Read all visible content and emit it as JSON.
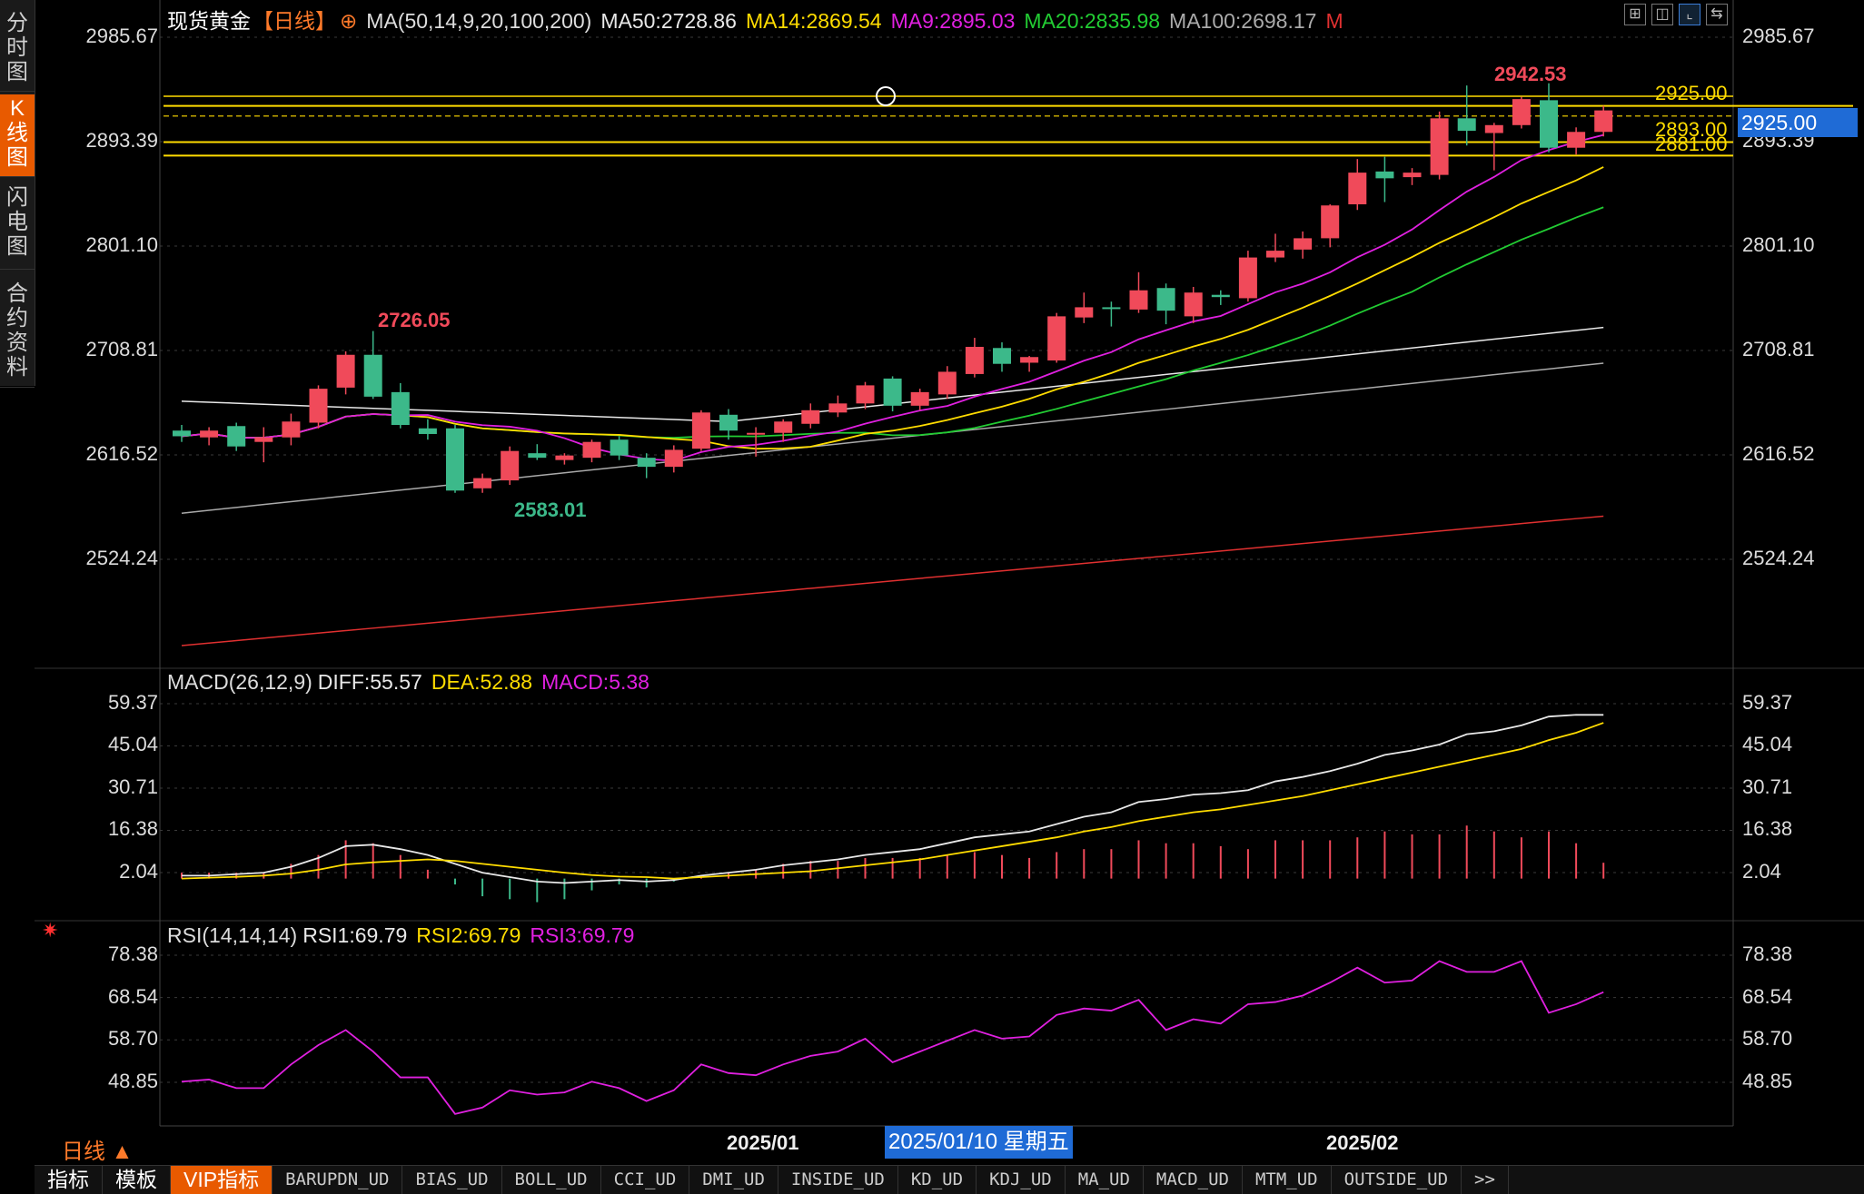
{
  "sidebar": {
    "tabs": [
      {
        "label": "分时图",
        "active": false
      },
      {
        "label": "K线图",
        "active": true
      },
      {
        "label": "闪电图",
        "active": false
      },
      {
        "label": "合约资料",
        "active": false
      }
    ]
  },
  "header": {
    "symbol": "现货黄金",
    "period_tag": "【日线】",
    "ma_params": "MA(50,14,9,20,100,200)",
    "ma50": "MA50:2728.86",
    "ma14": "MA14:2869.54",
    "ma9": "MA9:2895.03",
    "ma20": "MA20:2835.98",
    "ma100": "MA100:2698.17",
    "m_tag": "M",
    "toolbar_icons": [
      "grid-icon",
      "split-icon",
      "chart-icon",
      "arrows-icon"
    ]
  },
  "price_axis": {
    "ticks": [
      "2985.67",
      "2893.39",
      "2801.10",
      "2708.81",
      "2616.52",
      "2524.24"
    ]
  },
  "hlines": [
    {
      "label": "2925.00",
      "color": "#ffdc00"
    },
    {
      "label": "2893.00",
      "color": "#ffdc00"
    },
    {
      "label": "2881.00",
      "color": "#ffdc00"
    }
  ],
  "current_price": "2925.00",
  "annotations": {
    "high1": "2726.05",
    "low1": "2583.01",
    "high2": "2942.53"
  },
  "macd": {
    "legend_name": "MACD(26,12,9)",
    "diff": "DIFF:55.57",
    "dea": "DEA:52.88",
    "macd": "MACD:5.38",
    "ticks": [
      "59.37",
      "45.04",
      "30.71",
      "16.38",
      "2.04"
    ]
  },
  "rsi": {
    "legend_name": "RSI(14,14,14)",
    "rsi1": "RSI1:69.79",
    "rsi2": "RSI2:69.79",
    "rsi3": "RSI3:69.79",
    "ticks": [
      "78.38",
      "68.54",
      "58.70",
      "48.85"
    ]
  },
  "x_axis": {
    "labels": [
      "2025/01",
      "2025/02"
    ],
    "cursor_date": "2025/01/10 星期五"
  },
  "footer": {
    "period": "日线 ▲",
    "tabs": [
      "指标",
      "模板",
      "VIP指标",
      "BARUPDN_UD",
      "BIAS_UD",
      "BOLL_UD",
      "CCI_UD",
      "DMI_UD",
      "INSIDE_UD",
      "KD_UD",
      "KDJ_UD",
      "MA_UD",
      "MACD_UD",
      "MTM_UD",
      "OUTSIDE_UD",
      ">>"
    ]
  },
  "colors": {
    "up": "#f04a5a",
    "down": "#3cb98a",
    "ma50": "#e8e8e8",
    "ma14": "#ffdc00",
    "ma9": "#e020e0",
    "ma20": "#22cc33",
    "ma100": "#aaaaaa",
    "ma200": "#e03030"
  },
  "chart_data": [
    {
      "type": "candlestick",
      "title": "现货黄金 日线",
      "ylim": [
        2450,
        3010
      ],
      "candles": [
        {
          "o": 2638,
          "h": 2643,
          "l": 2628,
          "c": 2633
        },
        {
          "o": 2632,
          "h": 2641,
          "l": 2625,
          "c": 2638
        },
        {
          "o": 2642,
          "h": 2645,
          "l": 2620,
          "c": 2624
        },
        {
          "o": 2628,
          "h": 2641,
          "l": 2610,
          "c": 2632
        },
        {
          "o": 2632,
          "h": 2653,
          "l": 2625,
          "c": 2646
        },
        {
          "o": 2645,
          "h": 2678,
          "l": 2640,
          "c": 2675
        },
        {
          "o": 2676,
          "h": 2708,
          "l": 2670,
          "c": 2705
        },
        {
          "o": 2705,
          "h": 2726,
          "l": 2666,
          "c": 2668
        },
        {
          "o": 2672,
          "h": 2680,
          "l": 2640,
          "c": 2643
        },
        {
          "o": 2640,
          "h": 2648,
          "l": 2630,
          "c": 2635
        },
        {
          "o": 2640,
          "h": 2643,
          "l": 2583,
          "c": 2585
        },
        {
          "o": 2587,
          "h": 2600,
          "l": 2583,
          "c": 2596
        },
        {
          "o": 2594,
          "h": 2624,
          "l": 2590,
          "c": 2620
        },
        {
          "o": 2618,
          "h": 2626,
          "l": 2612,
          "c": 2614
        },
        {
          "o": 2612,
          "h": 2618,
          "l": 2608,
          "c": 2616
        },
        {
          "o": 2614,
          "h": 2630,
          "l": 2610,
          "c": 2628
        },
        {
          "o": 2630,
          "h": 2633,
          "l": 2612,
          "c": 2616
        },
        {
          "o": 2614,
          "h": 2618,
          "l": 2596,
          "c": 2606
        },
        {
          "o": 2606,
          "h": 2625,
          "l": 2601,
          "c": 2621
        },
        {
          "o": 2622,
          "h": 2656,
          "l": 2620,
          "c": 2654
        },
        {
          "o": 2652,
          "h": 2657,
          "l": 2630,
          "c": 2638
        },
        {
          "o": 2636,
          "h": 2641,
          "l": 2615,
          "c": 2636
        },
        {
          "o": 2636,
          "h": 2648,
          "l": 2628,
          "c": 2646
        },
        {
          "o": 2644,
          "h": 2662,
          "l": 2640,
          "c": 2656
        },
        {
          "o": 2654,
          "h": 2669,
          "l": 2650,
          "c": 2662
        },
        {
          "o": 2662,
          "h": 2681,
          "l": 2657,
          "c": 2678
        },
        {
          "o": 2684,
          "h": 2686,
          "l": 2655,
          "c": 2660
        },
        {
          "o": 2660,
          "h": 2675,
          "l": 2656,
          "c": 2672
        },
        {
          "o": 2670,
          "h": 2695,
          "l": 2666,
          "c": 2690
        },
        {
          "o": 2688,
          "h": 2720,
          "l": 2685,
          "c": 2712
        },
        {
          "o": 2711,
          "h": 2716,
          "l": 2690,
          "c": 2697
        },
        {
          "o": 2698,
          "h": 2704,
          "l": 2690,
          "c": 2703
        },
        {
          "o": 2700,
          "h": 2742,
          "l": 2698,
          "c": 2739
        },
        {
          "o": 2738,
          "h": 2760,
          "l": 2733,
          "c": 2747
        },
        {
          "o": 2747,
          "h": 2752,
          "l": 2730,
          "c": 2746
        },
        {
          "o": 2745,
          "h": 2778,
          "l": 2742,
          "c": 2762
        },
        {
          "o": 2764,
          "h": 2768,
          "l": 2732,
          "c": 2744
        },
        {
          "o": 2739,
          "h": 2765,
          "l": 2733,
          "c": 2760
        },
        {
          "o": 2758,
          "h": 2762,
          "l": 2749,
          "c": 2756
        },
        {
          "o": 2755,
          "h": 2797,
          "l": 2752,
          "c": 2791
        },
        {
          "o": 2791,
          "h": 2812,
          "l": 2787,
          "c": 2797
        },
        {
          "o": 2798,
          "h": 2814,
          "l": 2790,
          "c": 2808
        },
        {
          "o": 2808,
          "h": 2838,
          "l": 2800,
          "c": 2837
        },
        {
          "o": 2838,
          "h": 2878,
          "l": 2833,
          "c": 2866
        },
        {
          "o": 2867,
          "h": 2880,
          "l": 2840,
          "c": 2861
        },
        {
          "o": 2862,
          "h": 2870,
          "l": 2855,
          "c": 2866
        },
        {
          "o": 2864,
          "h": 2920,
          "l": 2860,
          "c": 2914
        },
        {
          "o": 2914,
          "h": 2943,
          "l": 2890,
          "c": 2903
        },
        {
          "o": 2901,
          "h": 2910,
          "l": 2868,
          "c": 2908
        },
        {
          "o": 2908,
          "h": 2933,
          "l": 2905,
          "c": 2931
        },
        {
          "o": 2930,
          "h": 2945,
          "l": 2884,
          "c": 2888
        },
        {
          "o": 2888,
          "h": 2906,
          "l": 2882,
          "c": 2902
        },
        {
          "o": 2902,
          "h": 2925,
          "l": 2898,
          "c": 2921
        }
      ]
    },
    {
      "type": "line",
      "title": "MACD(26,12,9)",
      "ylim": [
        -5,
        62
      ],
      "series": [
        {
          "name": "DIFF",
          "values": [
            1,
            1,
            1.5,
            2,
            4,
            7,
            11,
            11.5,
            10,
            8,
            5,
            2,
            0.5,
            -1,
            -1.5,
            -1,
            -0.5,
            -1,
            -0.5,
            1,
            2,
            3,
            4.5,
            5.5,
            6.5,
            8,
            9,
            10,
            12,
            14,
            15,
            16,
            18.5,
            21,
            22.5,
            26,
            27,
            28.5,
            29,
            30,
            33,
            34.5,
            36.5,
            39,
            42,
            43.5,
            45.5,
            49,
            50,
            52,
            55,
            55.6,
            55.57
          ]
        },
        {
          "name": "DEA",
          "values": [
            0,
            0.3,
            0.6,
            1,
            1.7,
            3,
            4.8,
            5.5,
            6,
            6.5,
            6,
            5,
            4,
            3,
            2,
            1.2,
            0.7,
            0.5,
            0,
            0.5,
            1,
            1.5,
            2,
            2.5,
            3.5,
            4.5,
            5.5,
            6.5,
            8,
            9.5,
            11,
            12.5,
            14,
            16,
            17.5,
            19.5,
            21,
            22.5,
            23.5,
            25,
            26.5,
            28,
            30,
            32,
            34,
            36,
            38,
            40,
            42,
            44,
            47,
            49.5,
            52.88
          ]
        },
        {
          "name": "MACD",
          "values": [
            2,
            2,
            2,
            2,
            5,
            8,
            13,
            12,
            8,
            3,
            -2,
            -6,
            -7,
            -8,
            -7,
            -4,
            -2,
            -3,
            -1,
            1,
            2,
            3,
            5,
            6,
            6,
            7,
            7,
            7,
            8,
            9,
            8,
            7,
            9,
            10,
            10,
            13,
            12,
            12,
            11,
            10,
            13,
            13,
            13,
            14,
            16,
            15,
            15,
            18,
            16,
            14,
            16,
            12,
            5.38
          ]
        }
      ]
    },
    {
      "type": "line",
      "title": "RSI(14,14,14)",
      "ylim": [
        40,
        82
      ],
      "series": [
        {
          "name": "RSI1",
          "values": [
            49,
            49.5,
            47.5,
            47.5,
            53,
            57.5,
            61,
            56,
            50,
            50,
            41.5,
            43,
            47,
            46,
            46.5,
            49,
            47.5,
            44.5,
            47,
            53,
            51,
            50.5,
            53,
            55,
            56,
            59,
            53.5,
            56,
            58.5,
            61,
            59,
            59.5,
            64.5,
            66,
            65.5,
            68,
            61,
            63.5,
            62.5,
            67,
            67.5,
            69,
            72,
            75.5,
            72,
            72.5,
            77,
            74.5,
            74.5,
            77,
            65,
            67,
            69.79
          ]
        }
      ]
    }
  ]
}
